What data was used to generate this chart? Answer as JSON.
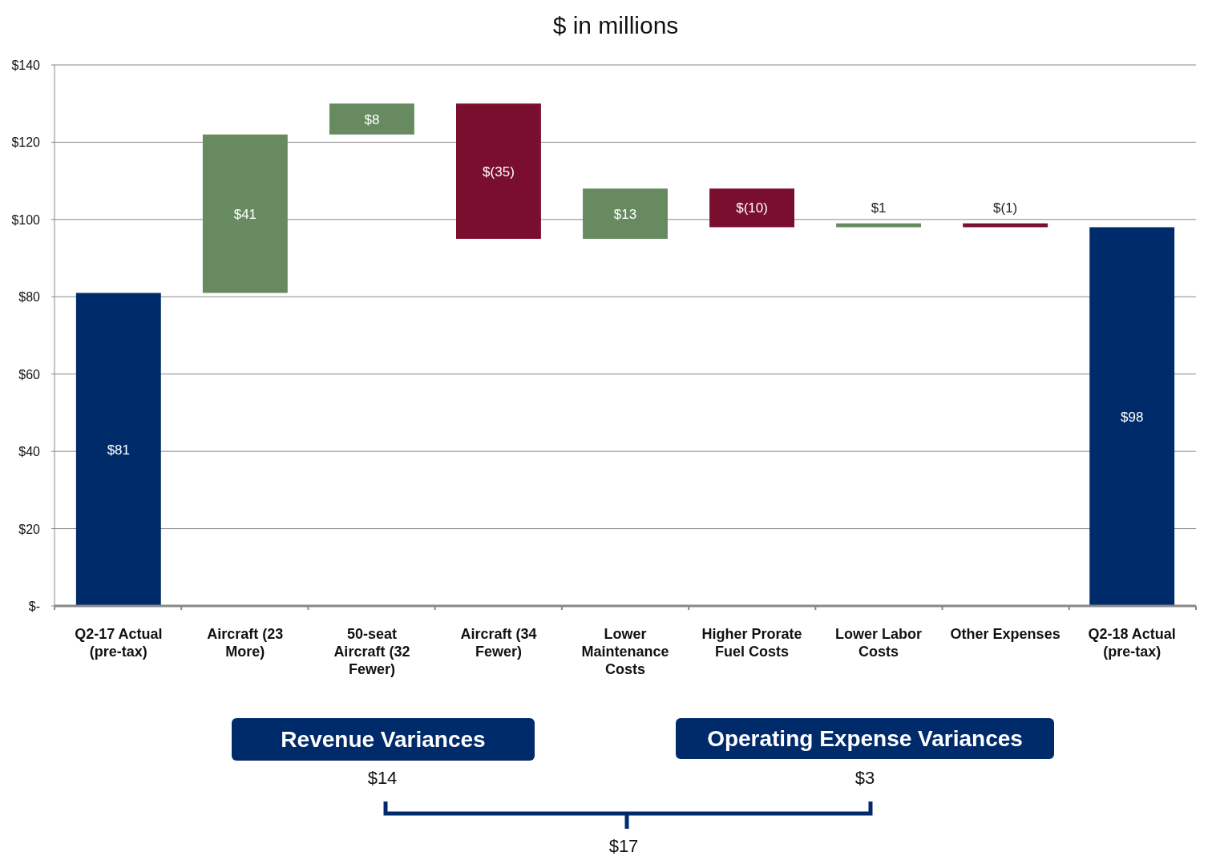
{
  "chart_data": {
    "type": "bar",
    "title": "$ in millions",
    "categories": [
      "Q2-17 Actual (pre-tax)",
      "Aircraft (23 More)",
      "50-seat Aircraft (32 Fewer)",
      "Aircraft (34 Fewer)",
      "Lower Maintenance Costs",
      "Higher Prorate Fuel Costs",
      "Lower Labor Costs",
      "Other Expenses",
      "Q2-18 Actual (pre-tax)"
    ],
    "values": [
      81,
      41,
      8,
      -35,
      13,
      -10,
      1,
      -1,
      98
    ],
    "base": [
      0,
      81,
      122,
      130,
      95,
      108,
      98,
      99,
      0
    ],
    "colors": [
      "#002b6b",
      "#678a61",
      "#678a61",
      "#7a0e2e",
      "#678a61",
      "#7a0e2e",
      "#678a61",
      "#7a0e2e",
      "#002b6b"
    ],
    "value_labels": [
      "$81",
      "$41",
      "$8",
      "$(35)",
      "$13",
      "$(10)",
      "$1",
      "$(1)",
      "$98"
    ],
    "ylim": [
      0,
      140
    ],
    "yticks": [
      {
        "value": 0,
        "label": "$-"
      },
      {
        "value": 20,
        "label": "$20"
      },
      {
        "value": 40,
        "label": "$40"
      },
      {
        "value": 60,
        "label": "$60"
      },
      {
        "value": 80,
        "label": "$80"
      },
      {
        "value": 100,
        "label": "$100"
      },
      {
        "value": 120,
        "label": "$120"
      },
      {
        "value": 140,
        "label": "$140"
      }
    ],
    "grid": "y",
    "annotations": [
      "Revenue Variances",
      "$14",
      "Operating Expense Variances",
      "$3",
      "$17"
    ]
  }
}
